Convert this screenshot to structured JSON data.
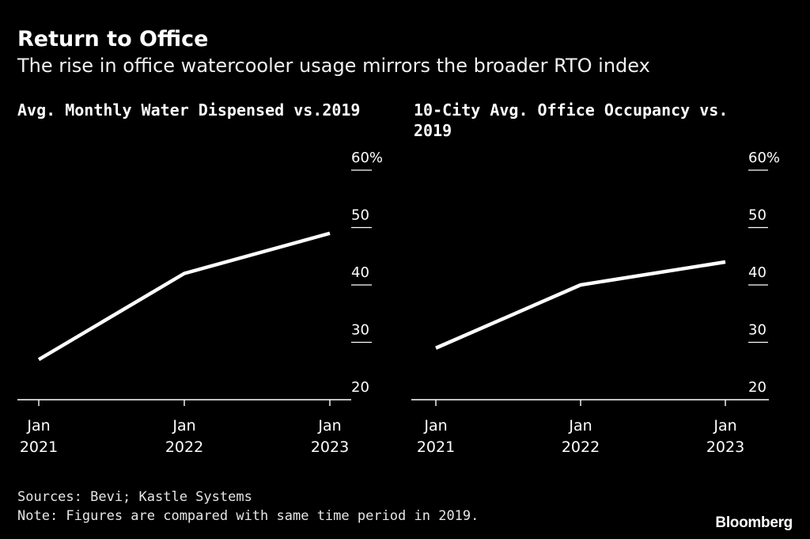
{
  "title": "Return to Office",
  "subtitle": "The rise in office watercooler usage mirrors the broader RTO index",
  "chart_data": [
    {
      "type": "line",
      "title": "Avg. Monthly Water Dispensed vs.2019",
      "x_tick_labels": [
        [
          "Jan",
          "2021"
        ],
        [
          "Jan",
          "2022"
        ],
        [
          "Jan",
          "2023"
        ]
      ],
      "x": [
        0,
        1,
        2
      ],
      "values": [
        27,
        42,
        49
      ],
      "y_ticks": [
        "20",
        "30",
        "40",
        "50",
        "60%"
      ],
      "y_tick_values": [
        20,
        30,
        40,
        50,
        60
      ],
      "ylim": [
        18,
        60
      ],
      "xlabel": "",
      "ylabel": "",
      "grid": false
    },
    {
      "type": "line",
      "title": "10-City Avg. Office Occupancy vs. 2019",
      "x_tick_labels": [
        [
          "Jan",
          "2021"
        ],
        [
          "Jan",
          "2022"
        ],
        [
          "Jan",
          "2023"
        ]
      ],
      "x": [
        0,
        1,
        2
      ],
      "values": [
        29,
        40,
        44
      ],
      "y_ticks": [
        "20",
        "30",
        "40",
        "50",
        "60%"
      ],
      "y_tick_values": [
        20,
        30,
        40,
        50,
        60
      ],
      "ylim": [
        18,
        60
      ],
      "xlabel": "",
      "ylabel": "",
      "grid": false
    }
  ],
  "footer": {
    "sources": "Sources: Bevi; Kastle Systems",
    "note": "Note: Figures are compared with same time period in 2019.",
    "brand": "Bloomberg"
  },
  "colors": {
    "background": "#000000",
    "line": "#ffffff",
    "axis": "#ffffff"
  }
}
